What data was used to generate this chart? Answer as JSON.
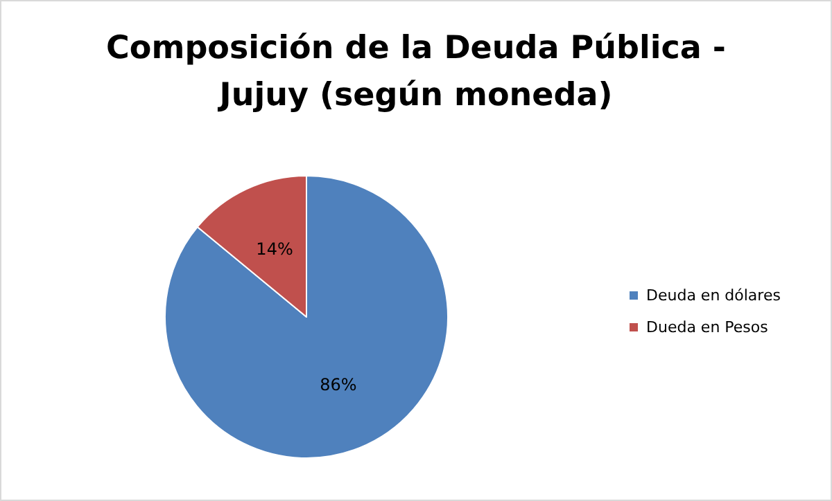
{
  "chart_data": {
    "type": "pie",
    "title": "Composición de la Deuda Pública -\nJujuy (según moneda)",
    "categories": [
      "Deuda en dólares",
      "Dueda en Pesos"
    ],
    "values": [
      86,
      14
    ],
    "colors": [
      "#4f81bd",
      "#c0504d"
    ],
    "value_labels": [
      "86%",
      "14%"
    ],
    "legend": "right"
  }
}
